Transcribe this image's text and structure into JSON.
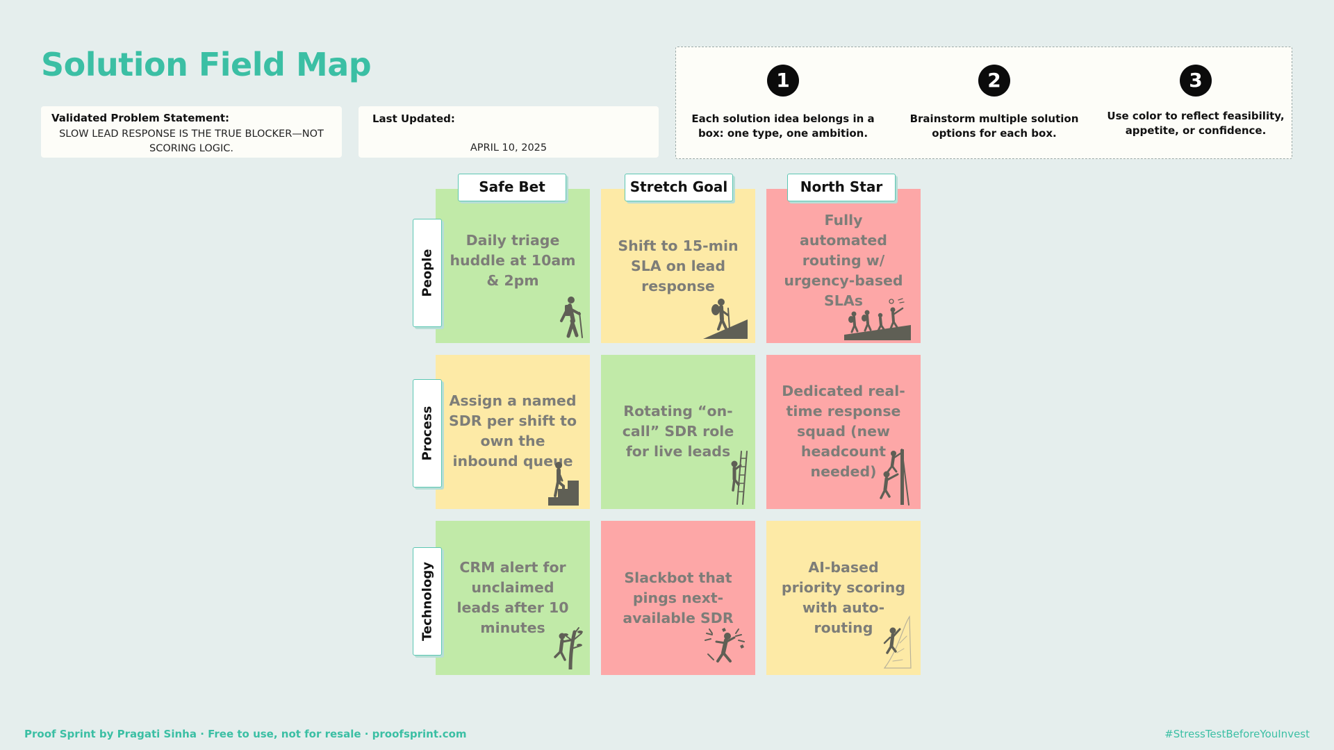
{
  "page": {
    "title": "Solution Field Map"
  },
  "problem": {
    "label": "Validated Problem Statement:",
    "text": "SLOW LEAD RESPONSE IS THE TRUE BLOCKER—NOT SCORING LOGIC."
  },
  "updated": {
    "label": "Last Updated:",
    "date": "APRIL 10, 2025"
  },
  "rules": [
    {
      "number": "1",
      "text": "Each solution idea belongs in a box: one type, one ambition."
    },
    {
      "number": "2",
      "text": "Brainstorm multiple solution options for each box."
    },
    {
      "number": "3",
      "text": "Use color to reflect feasibility, appetite, or confidence."
    }
  ],
  "columns": [
    "Safe Bet",
    "Stretch Goal",
    "North Star"
  ],
  "rows": [
    "People",
    "Process",
    "Technology"
  ],
  "cells": [
    [
      {
        "text": "Daily triage huddle at 10am & 2pm",
        "color": "#c1eaa8",
        "icon": "walking-hiker-icon"
      },
      {
        "text": "Shift to 15-min SLA on lead response",
        "color": "#fdeaa6",
        "icon": "hiker-uphill-icon"
      },
      {
        "text": "Fully automated routing w/ urgency-based SLAs",
        "color": "#fda7a7",
        "icon": "hiking-group-icon"
      }
    ],
    [
      {
        "text": "Assign a named SDR per shift to own the inbound queue",
        "color": "#fdeaa6",
        "icon": "stairs-climber-icon"
      },
      {
        "text": "Rotating “on-call” SDR role for live leads",
        "color": "#c1eaa8",
        "icon": "ladder-climber-icon"
      },
      {
        "text": "Dedicated real-time response squad (new headcount needed)",
        "color": "#fda7a7",
        "icon": "wall-climbers-icon"
      }
    ],
    [
      {
        "text": "CRM alert for unclaimed leads after 10 minutes",
        "color": "#c1eaa8",
        "icon": "tree-climber-icon"
      },
      {
        "text": "Slackbot that pings next-available SDR",
        "color": "#fda7a7",
        "icon": "falling-climber-icon"
      },
      {
        "text": "AI-based priority scoring with auto-routing",
        "color": "#fdeaa6",
        "icon": "cliff-climber-icon"
      }
    ]
  ],
  "footer": {
    "left": "Proof Sprint by Pragati Sinha · Free to use, not for resale · proofsprint.com",
    "right": "#StressTestBeforeYouInvest"
  },
  "colors": {
    "accent": "#3bbfa4",
    "safe": "#c1eaa8",
    "stretch": "#fdeaa6",
    "northstar": "#fda7a7",
    "background": "#e5eeed"
  }
}
